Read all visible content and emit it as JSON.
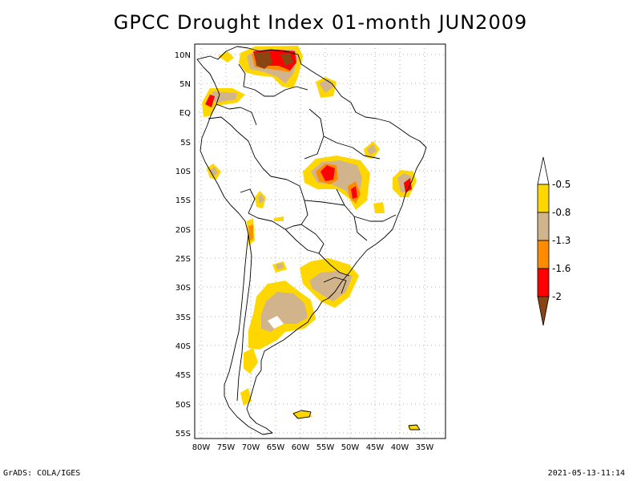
{
  "title": "GPCC Drought Index 01-month JUN2009",
  "footer": {
    "left": "GrADS: COLA/IGES",
    "right": "2021-05-13-11:14"
  },
  "axes": {
    "lat_ticks": [
      "10N",
      "5N",
      "EQ",
      "5S",
      "10S",
      "15S",
      "20S",
      "25S",
      "30S",
      "35S",
      "40S",
      "45S",
      "50S",
      "55S"
    ],
    "lon_ticks": [
      "80W",
      "75W",
      "70W",
      "65W",
      "60W",
      "55W",
      "50W",
      "45W",
      "40W",
      "35W"
    ]
  },
  "legend": {
    "levels": [
      "-0.5",
      "-0.8",
      "-1.3",
      "-1.6",
      "-2"
    ],
    "colors": {
      "above_-0.5": "#ffffff",
      "-0.5_to_-0.8": "#ffd700",
      "-0.8_to_-1.3": "#d2b48c",
      "-1.3_to_-1.6": "#ff8c00",
      "-1.6_to_-2": "#ff0000",
      "below_-2": "#8b4513"
    }
  },
  "colors": {
    "coast": "#000000",
    "grid": "#999999"
  }
}
